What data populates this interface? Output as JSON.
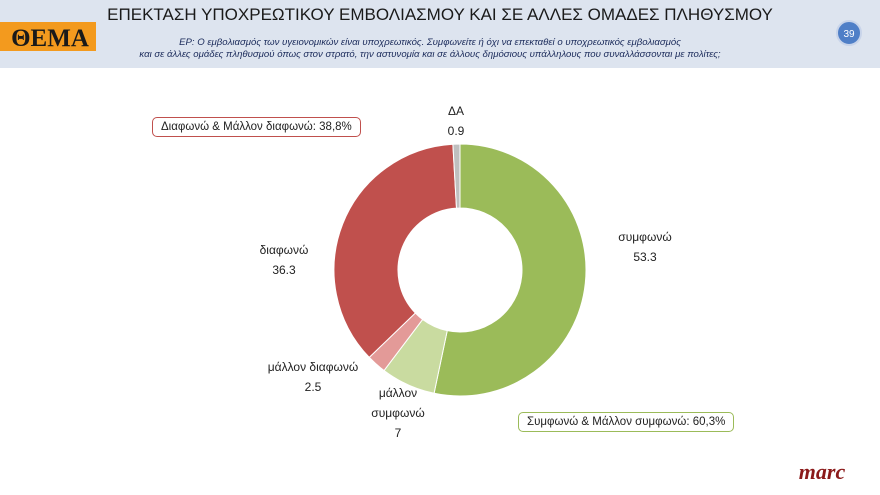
{
  "slide": {
    "logo": "ΘΕΜΑ",
    "page_number": 39,
    "brand": "marc"
  },
  "chart_data": {
    "type": "donut",
    "title": "ΕΠΕΚΤΑΣΗ ΥΠΟΧΡΕΩΤΙΚΟΥ ΕΜΒΟΛΙΑΣΜΟΥ ΚΑΙ ΣΕ ΑΛΛΕΣ ΟΜΑΔΕΣ ΠΛΗΘΥΣΜΟΥ",
    "subtitle_lines": [
      "ΕΡ: Ο εμβολιασμός των υγειονομικών είναι υποχρεωτικός. Συμφωνείτε ή όχι να επεκταθεί ο υποχρεωτικός εμβολιασμός",
      "και σε άλλες ομάδες πληθυσμού όπως στον στρατό, την αστυνομία και σε άλλους δημόσιους υπάλληλους που συναλλάσσονται με πολίτες;"
    ],
    "categories": [
      "συμφωνώ",
      "μάλλον συμφωνώ",
      "μάλλον διαφωνώ",
      "διαφωνώ",
      "ΔΑ"
    ],
    "values": [
      53.3,
      7,
      2.5,
      36.3,
      0.9
    ],
    "colors": [
      "#9bbb59",
      "#c9dba0",
      "#e39a98",
      "#c0504d",
      "#bfbfbf"
    ],
    "annotations": [
      {
        "text": "Διαφωνώ & Μάλλον διαφωνώ: 38,8%",
        "color": "#c0504d"
      },
      {
        "text": "Συμφωνώ & Μάλλον συμφωνώ: 60,3%",
        "color": "#9bbb59"
      }
    ]
  }
}
